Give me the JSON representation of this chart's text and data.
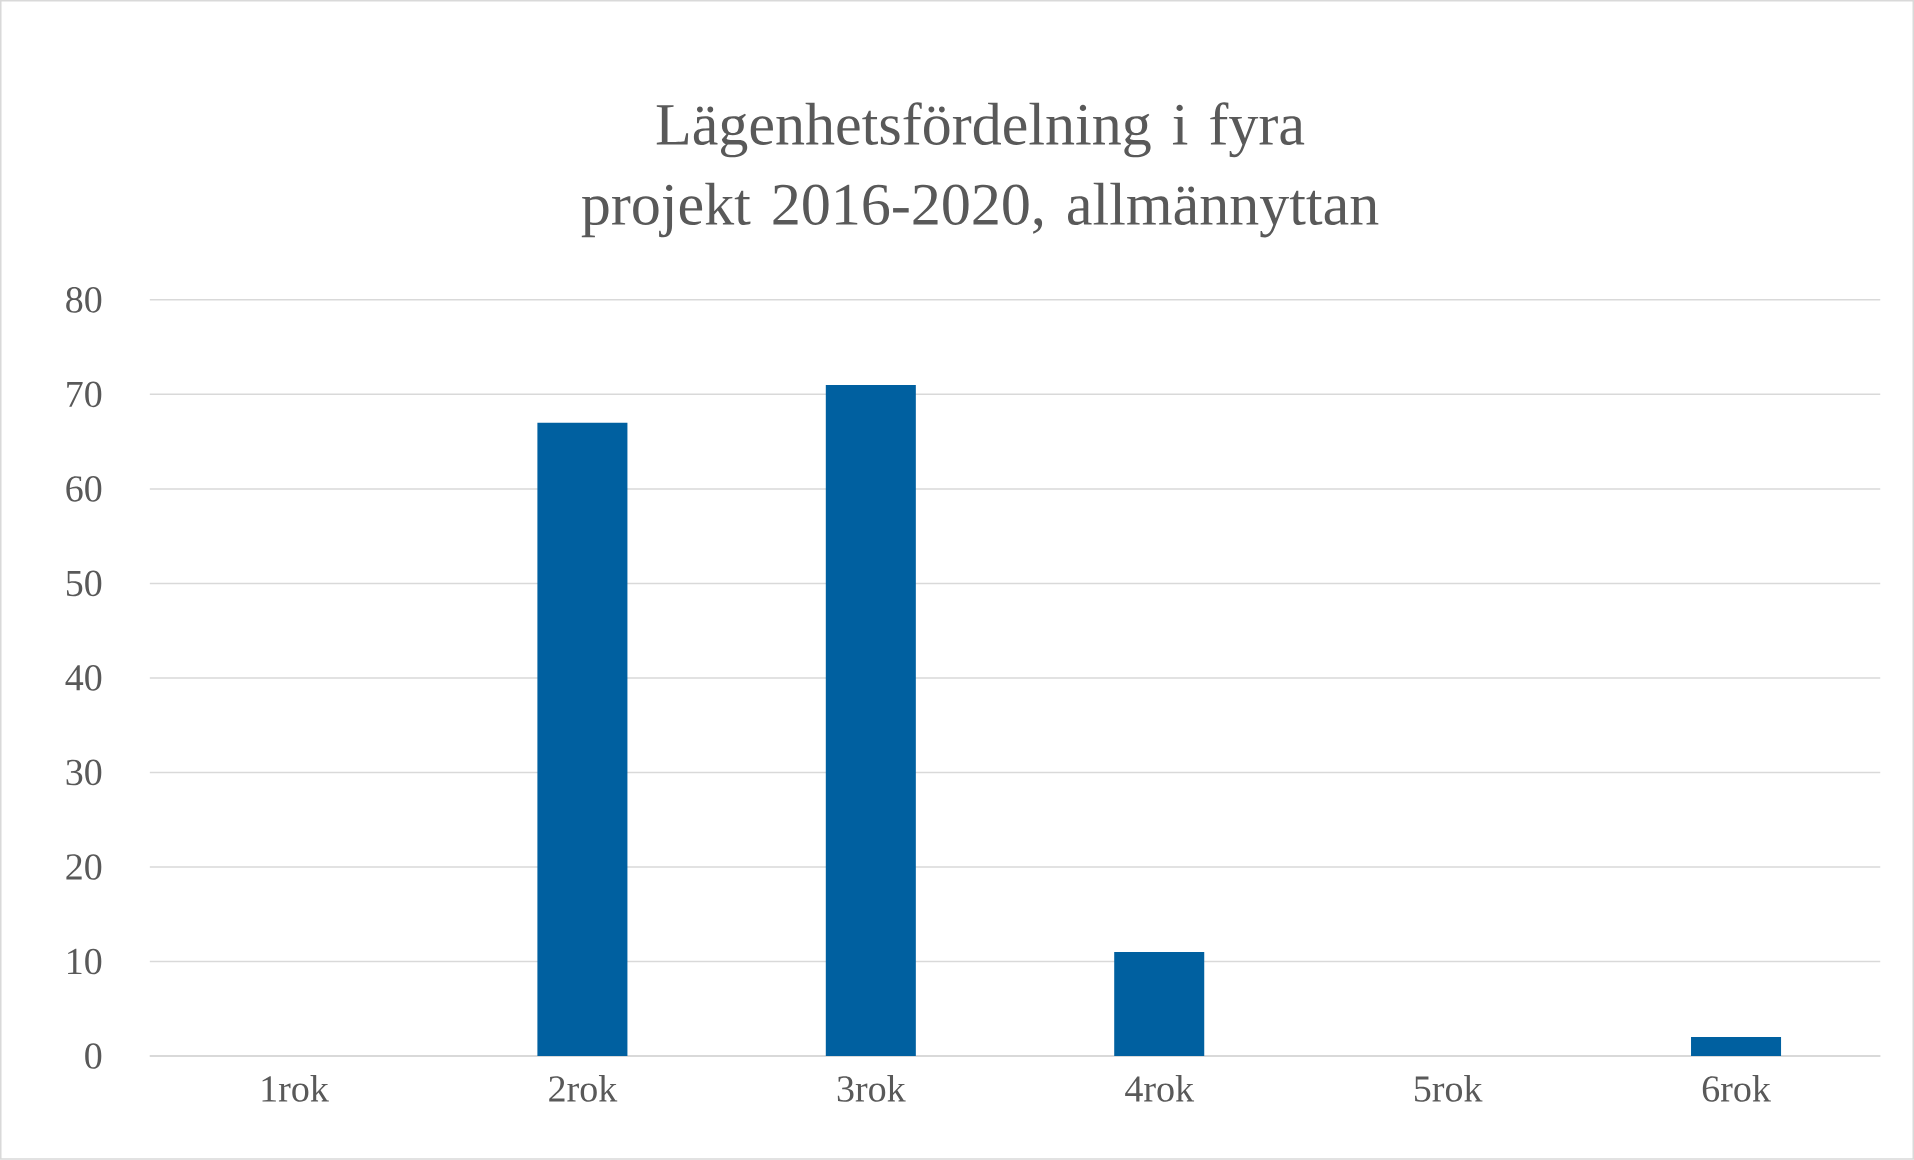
{
  "chart_data": {
    "type": "bar",
    "title": "Lägenhetsfördelning i fyra projekt 2016-2020, allmännyttan",
    "categories": [
      "1rok",
      "2rok",
      "3rok",
      "4rok",
      "5rok",
      "6rok"
    ],
    "values": [
      0,
      67,
      71,
      11,
      0,
      2
    ],
    "color": "#0060a0",
    "ylim": [
      0,
      80
    ],
    "yticks": [
      0,
      10,
      20,
      30,
      40,
      50,
      60,
      70,
      80
    ],
    "grid": "y"
  }
}
